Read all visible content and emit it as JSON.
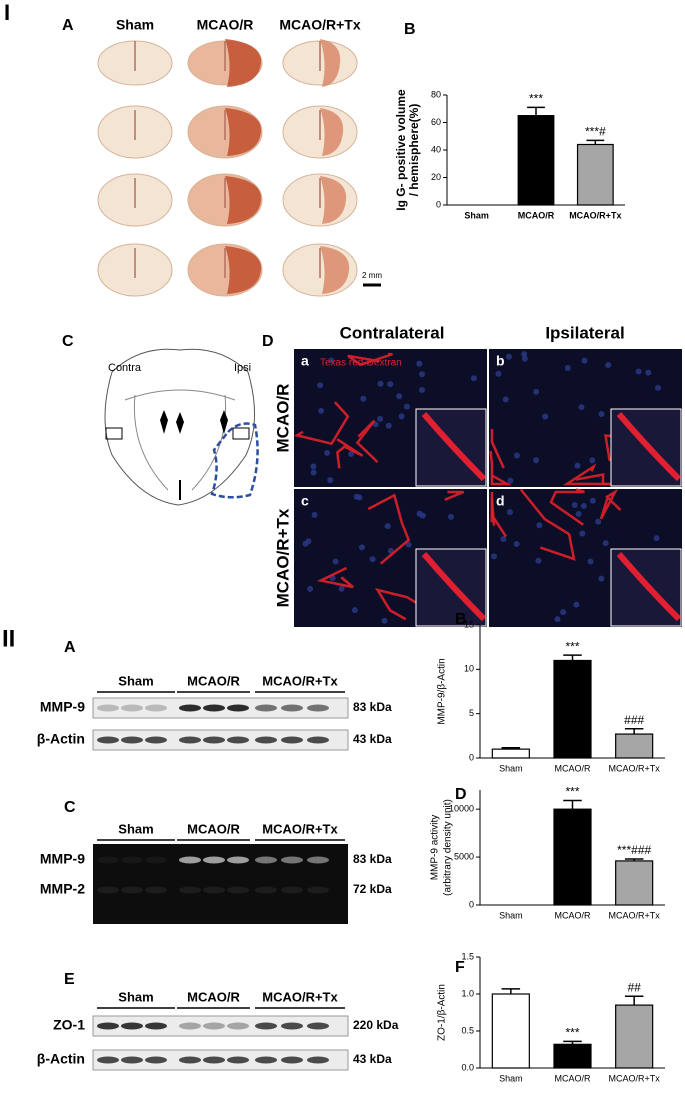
{
  "section_I": {
    "label": "I",
    "panel_a": {
      "label": "A",
      "columns": [
        "Sham",
        "MCAO/R",
        "MCAO/R+Tx"
      ],
      "scale_bar": "2 mm"
    },
    "panel_c": {
      "label": "C",
      "left": "Contra",
      "right": "Ipsi"
    },
    "panel_d": {
      "label": "D",
      "columns": [
        "Contralateral",
        "Ipsilateral"
      ],
      "rows": [
        "MCAO/R",
        "MCAO/R+Tx"
      ],
      "subpanels": [
        "a",
        "b",
        "c",
        "d"
      ],
      "stain": "Texas red-Dextran"
    }
  },
  "section_II": {
    "label": "II",
    "blots": [
      {
        "label": "A",
        "groups": [
          "Sham",
          "MCAO/R",
          "MCAO/R+Tx"
        ],
        "rows": [
          {
            "name": "MMP-9",
            "size": "83 kDa"
          },
          {
            "name": "β-Actin",
            "size": "43 kDa"
          }
        ]
      },
      {
        "label": "C",
        "groups": [
          "Sham",
          "MCAO/R",
          "MCAO/R+Tx"
        ],
        "rows": [
          {
            "name": "MMP-9",
            "size": "83 kDa"
          },
          {
            "name": "MMP-2",
            "size": "72 kDa"
          }
        ]
      },
      {
        "label": "E",
        "groups": [
          "Sham",
          "MCAO/R",
          "MCAO/R+Tx"
        ],
        "rows": [
          {
            "name": "ZO-1",
            "size": "220 kDa"
          },
          {
            "name": "β-Actin",
            "size": "43 kDa"
          }
        ]
      }
    ]
  },
  "chart_data": [
    {
      "type": "bar",
      "label": "B",
      "ylabel": [
        "Ig G- positive volume",
        "/ hemisphere(%)"
      ],
      "categories": [
        "Sham",
        "MCAO/R",
        "MCAO/R+Tx"
      ],
      "values": [
        0,
        65,
        44
      ],
      "errors": [
        null,
        6,
        3
      ],
      "annotations": [
        null,
        "***",
        "***#"
      ],
      "colors": [
        "#ffffff",
        "#000000",
        "#a6a6a6"
      ],
      "ylim": [
        0,
        80
      ],
      "yticks": [
        0,
        20,
        40,
        60,
        80
      ]
    },
    {
      "type": "bar",
      "label": "B",
      "ylabel": "MMP-9/β-Actin",
      "categories": [
        "Sham",
        "MCAO/R",
        "MCAO/R+Tx"
      ],
      "values": [
        1,
        11,
        2.7
      ],
      "errors": [
        0.15,
        0.6,
        0.6
      ],
      "annotations": [
        null,
        "***",
        "###"
      ],
      "colors": [
        "#ffffff",
        "#000000",
        "#a6a6a6"
      ],
      "ylim": [
        0,
        15
      ],
      "yticks": [
        0,
        5,
        10,
        15
      ]
    },
    {
      "type": "bar",
      "label": "D",
      "ylabel": [
        "MMP-9 activity",
        "(arbitrary density unit)"
      ],
      "categories": [
        "Sham",
        "MCAO/R",
        "MCAO/R+Tx"
      ],
      "values": [
        0,
        10000,
        4600
      ],
      "errors": [
        null,
        900,
        200
      ],
      "annotations": [
        null,
        "***",
        "***###"
      ],
      "colors": [
        "#ffffff",
        "#000000",
        "#a6a6a6"
      ],
      "ylim": [
        0,
        12000
      ],
      "yticks": [
        0,
        5000,
        10000
      ]
    },
    {
      "type": "bar",
      "label": "F",
      "ylabel": "ZO-1/β-Actin",
      "categories": [
        "Sham",
        "MCAO/R",
        "MCAO/R+Tx"
      ],
      "values": [
        1.0,
        0.32,
        0.85
      ],
      "errors": [
        0.07,
        0.04,
        0.12
      ],
      "annotations": [
        null,
        "***",
        "##"
      ],
      "colors": [
        "#ffffff",
        "#000000",
        "#a6a6a6"
      ],
      "ylim": [
        0,
        1.5
      ],
      "yticks": [
        {
          "value": 0,
          "label": "0.0"
        },
        0.5,
        {
          "value": 1,
          "label": "1.0"
        },
        1.5
      ]
    }
  ]
}
